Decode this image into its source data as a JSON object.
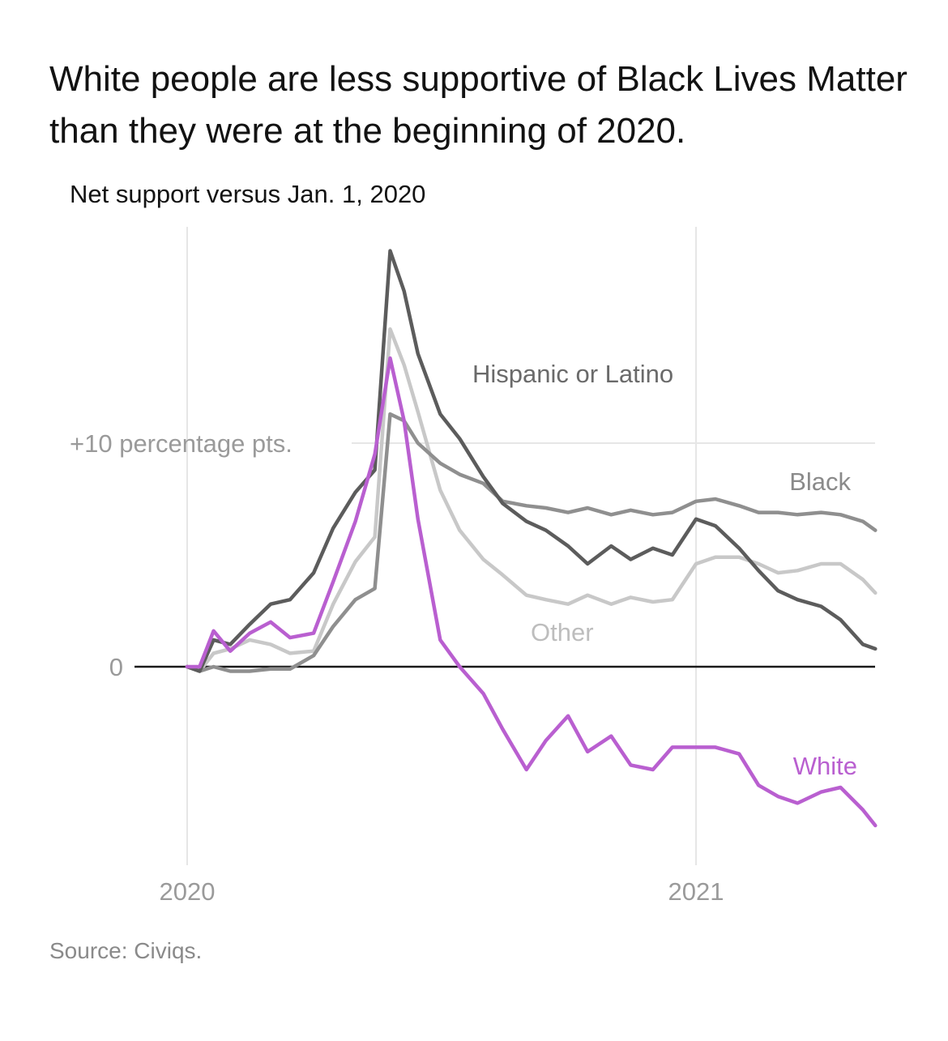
{
  "title": "White people are less supportive of Black Lives Matter than they were at the beginning of 2020.",
  "subtitle": "Net support versus Jan. 1, 2020",
  "source": "Source: Civiqs.",
  "chart_data": {
    "type": "line",
    "x_unit": "date",
    "x_ticks": [
      {
        "value": "2020-01-01",
        "label": "2020"
      },
      {
        "value": "2021-01-01",
        "label": "2021"
      }
    ],
    "y_ticks": [
      {
        "value": 0,
        "label": "0"
      },
      {
        "value": 10,
        "label": "+10 percentage pts."
      }
    ],
    "xlim": [
      "2020-01-01",
      "2021-05-15"
    ],
    "ylim": [
      -9,
      19
    ],
    "grid": "vertical at year starts, horizontal at +10",
    "series": [
      {
        "name": "Hispanic or Latino",
        "color": "#5c5c5c",
        "x": [
          "2020-01-01",
          "2020-01-10",
          "2020-01-20",
          "2020-02-01",
          "2020-02-15",
          "2020-03-01",
          "2020-03-15",
          "2020-04-01",
          "2020-04-15",
          "2020-05-01",
          "2020-05-15",
          "2020-05-26",
          "2020-06-05",
          "2020-06-15",
          "2020-07-01",
          "2020-07-15",
          "2020-08-01",
          "2020-08-15",
          "2020-09-01",
          "2020-09-15",
          "2020-10-01",
          "2020-10-15",
          "2020-11-01",
          "2020-11-15",
          "2020-12-01",
          "2020-12-15",
          "2021-01-01",
          "2021-01-15",
          "2021-02-01",
          "2021-02-15",
          "2021-03-01",
          "2021-03-15",
          "2021-04-01",
          "2021-04-15",
          "2021-05-01",
          "2021-05-10"
        ],
        "y": [
          0,
          -0.2,
          1.2,
          1.0,
          1.9,
          2.8,
          3.0,
          4.2,
          6.2,
          7.8,
          8.8,
          18.6,
          16.8,
          14.0,
          11.3,
          10.2,
          8.5,
          7.3,
          6.5,
          6.1,
          5.4,
          4.6,
          5.4,
          4.8,
          5.3,
          5.0,
          6.6,
          6.3,
          5.3,
          4.3,
          3.4,
          3.0,
          2.7,
          2.1,
          1.0,
          0.8
        ]
      },
      {
        "name": "Black",
        "color": "#8f8f8f",
        "x": [
          "2020-01-01",
          "2020-01-10",
          "2020-01-20",
          "2020-02-01",
          "2020-02-15",
          "2020-03-01",
          "2020-03-15",
          "2020-04-01",
          "2020-04-15",
          "2020-05-01",
          "2020-05-15",
          "2020-05-26",
          "2020-06-05",
          "2020-06-15",
          "2020-07-01",
          "2020-07-15",
          "2020-08-01",
          "2020-08-15",
          "2020-09-01",
          "2020-09-15",
          "2020-10-01",
          "2020-10-15",
          "2020-11-01",
          "2020-11-15",
          "2020-12-01",
          "2020-12-15",
          "2021-01-01",
          "2021-01-15",
          "2021-02-01",
          "2021-02-15",
          "2021-03-01",
          "2021-03-15",
          "2021-04-01",
          "2021-04-15",
          "2021-05-01",
          "2021-05-10"
        ],
        "y": [
          0,
          -0.2,
          0,
          -0.2,
          -0.2,
          -0.1,
          -0.1,
          0.5,
          1.8,
          3.0,
          3.5,
          11.3,
          11.0,
          10.0,
          9.1,
          8.6,
          8.2,
          7.4,
          7.2,
          7.1,
          6.9,
          7.1,
          6.8,
          7.0,
          6.8,
          6.9,
          7.4,
          7.5,
          7.2,
          6.9,
          6.9,
          6.8,
          6.9,
          6.8,
          6.5,
          6.1
        ]
      },
      {
        "name": "Other",
        "color": "#c8c8c8",
        "x": [
          "2020-01-01",
          "2020-01-10",
          "2020-01-20",
          "2020-02-01",
          "2020-02-15",
          "2020-03-01",
          "2020-03-15",
          "2020-04-01",
          "2020-04-15",
          "2020-05-01",
          "2020-05-15",
          "2020-05-26",
          "2020-06-05",
          "2020-06-15",
          "2020-07-01",
          "2020-07-15",
          "2020-08-01",
          "2020-08-15",
          "2020-09-01",
          "2020-09-15",
          "2020-10-01",
          "2020-10-15",
          "2020-11-01",
          "2020-11-15",
          "2020-12-01",
          "2020-12-15",
          "2021-01-01",
          "2021-01-15",
          "2021-02-01",
          "2021-02-15",
          "2021-03-01",
          "2021-03-15",
          "2021-04-01",
          "2021-04-15",
          "2021-05-01",
          "2021-05-10"
        ],
        "y": [
          0,
          -0.2,
          0.6,
          0.8,
          1.2,
          1.0,
          0.6,
          0.7,
          2.8,
          4.7,
          5.8,
          15.1,
          13.5,
          11.4,
          7.9,
          6.1,
          4.8,
          4.1,
          3.2,
          3.0,
          2.8,
          3.2,
          2.8,
          3.1,
          2.9,
          3.0,
          4.6,
          4.9,
          4.9,
          4.6,
          4.2,
          4.3,
          4.6,
          4.6,
          3.9,
          3.3
        ]
      },
      {
        "name": "White",
        "color": "#b95fd0",
        "x": [
          "2020-01-01",
          "2020-01-10",
          "2020-01-20",
          "2020-02-01",
          "2020-02-15",
          "2020-03-01",
          "2020-03-15",
          "2020-04-01",
          "2020-04-15",
          "2020-05-01",
          "2020-05-15",
          "2020-05-26",
          "2020-06-05",
          "2020-06-15",
          "2020-07-01",
          "2020-07-15",
          "2020-08-01",
          "2020-08-15",
          "2020-09-01",
          "2020-09-15",
          "2020-10-01",
          "2020-10-15",
          "2020-11-01",
          "2020-11-15",
          "2020-12-01",
          "2020-12-15",
          "2021-01-01",
          "2021-01-15",
          "2021-02-01",
          "2021-02-15",
          "2021-03-01",
          "2021-03-15",
          "2021-04-01",
          "2021-04-15",
          "2021-05-01",
          "2021-05-10"
        ],
        "y": [
          0,
          0,
          1.6,
          0.7,
          1.5,
          2.0,
          1.3,
          1.5,
          3.8,
          6.5,
          9.5,
          13.8,
          11.0,
          6.6,
          1.2,
          0,
          -1.2,
          -2.8,
          -4.6,
          -3.3,
          -2.2,
          -3.8,
          -3.1,
          -4.4,
          -4.6,
          -3.6,
          -3.6,
          -3.6,
          -3.9,
          -5.3,
          -5.8,
          -6.1,
          -5.6,
          -5.4,
          -6.4,
          -7.1
        ]
      }
    ]
  }
}
